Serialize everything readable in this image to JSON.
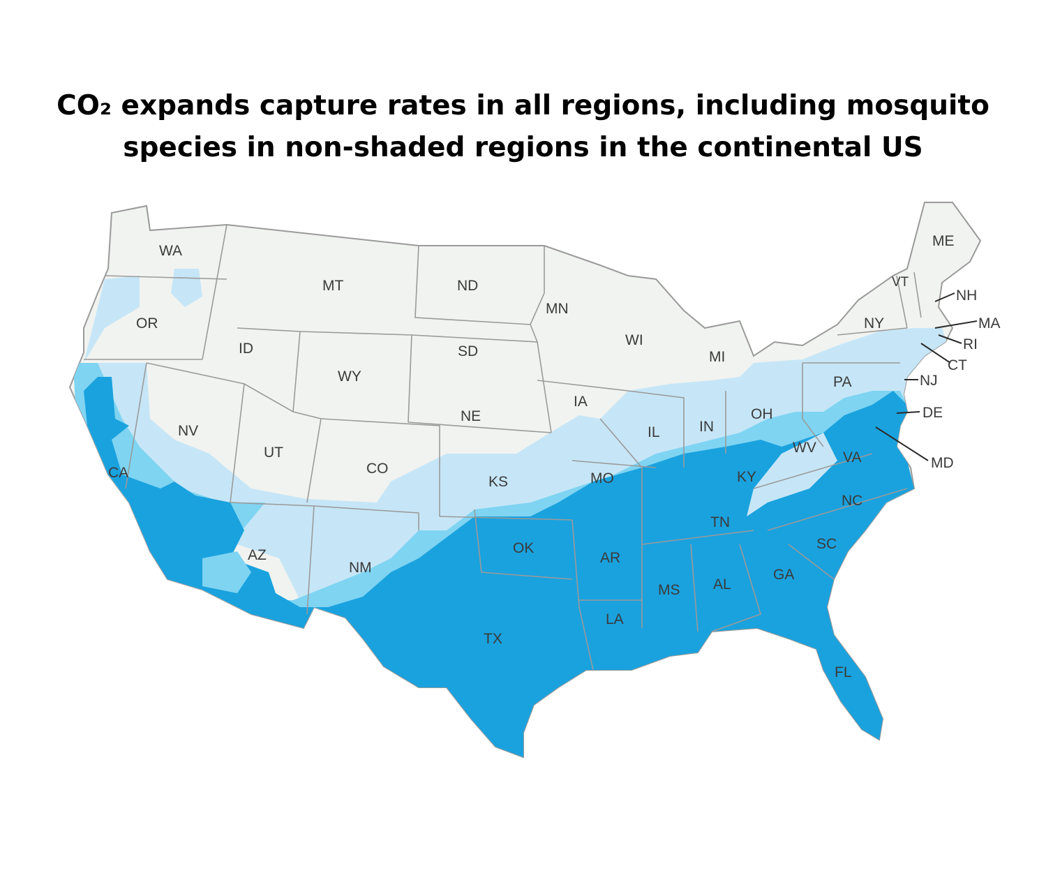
{
  "title": {
    "line1": "CO₂ expands capture rates in all regions, including mosquito",
    "line2": "species in non-shaded regions in the continental US"
  },
  "colors": {
    "background": "#ffffff",
    "unshaded": "#f1f3f0",
    "light": "#c6e6f7",
    "medium": "#7fd4f2",
    "dark": "#1aa2de",
    "border": "#9a9a9a"
  },
  "states": {
    "WA": "WA",
    "OR": "OR",
    "CA": "CA",
    "ID": "ID",
    "NV": "NV",
    "UT": "UT",
    "AZ": "AZ",
    "MT": "MT",
    "WY": "WY",
    "CO": "CO",
    "NM": "NM",
    "ND": "ND",
    "SD": "SD",
    "NE": "NE",
    "KS": "KS",
    "OK": "OK",
    "TX": "TX",
    "MN": "MN",
    "IA": "IA",
    "MO": "MO",
    "AR": "AR",
    "LA": "LA",
    "WI": "WI",
    "IL": "IL",
    "MI": "MI",
    "IN": "IN",
    "OH": "OH",
    "KY": "KY",
    "TN": "TN",
    "MS": "MS",
    "AL": "AL",
    "GA": "GA",
    "FL": "FL",
    "SC": "SC",
    "NC": "NC",
    "VA": "VA",
    "WV": "WV",
    "PA": "PA",
    "NY": "NY",
    "VT": "VT",
    "ME": "ME",
    "NH": "NH",
    "MA": "MA",
    "RI": "RI",
    "CT": "CT",
    "NJ": "NJ",
    "DE": "DE",
    "MD": "MD"
  }
}
